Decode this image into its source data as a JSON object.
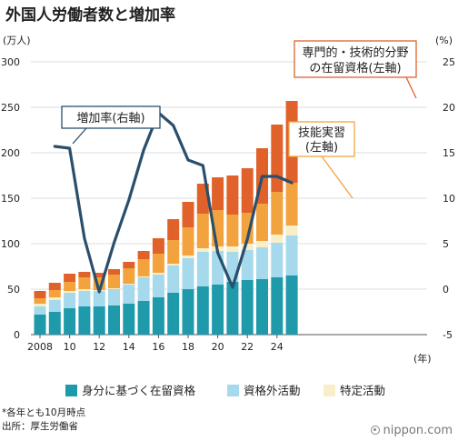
{
  "title": "外国人労働者数と増加率",
  "chart_data": {
    "type": "bar",
    "stacked": true,
    "categories": [
      2008,
      2009,
      2010,
      2011,
      2012,
      2013,
      2014,
      2015,
      2016,
      2017,
      2018,
      2019,
      2020,
      2021,
      2022,
      2023,
      2024,
      2025
    ],
    "series": [
      {
        "name": "身分に基づく在留資格",
        "color": "#1f9aab",
        "values": [
          22,
          25,
          29,
          31,
          31,
          32,
          34,
          37,
          41,
          46,
          50,
          53,
          55,
          58,
          60,
          61,
          63,
          65
        ]
      },
      {
        "name": "資格外活動",
        "color": "#a6d9ec",
        "values": [
          9,
          13,
          17,
          17,
          17,
          18,
          21,
          26,
          25,
          30,
          34,
          38,
          37,
          33,
          33,
          35,
          38,
          44
        ]
      },
      {
        "name": "特定活動",
        "color": "#f8eec8",
        "values": [
          3,
          3,
          2,
          2,
          1,
          1,
          1,
          1,
          2,
          2,
          3,
          4,
          5,
          6,
          7,
          7,
          9,
          11
        ]
      },
      {
        "name": "技能実習",
        "color": "#f3a33d",
        "values": [
          6,
          8,
          10,
          13,
          14,
          15,
          17,
          19,
          21,
          26,
          31,
          38,
          40,
          35,
          34,
          41,
          47,
          47
        ]
      },
      {
        "name": "専門的・技術的分野の在留資格",
        "color": "#e0622a",
        "values": [
          8,
          8,
          9,
          6,
          5,
          6,
          7,
          9,
          17,
          23,
          28,
          33,
          36,
          43,
          49,
          61,
          74,
          90
        ]
      }
    ],
    "growth_rate": {
      "name": "増加率",
      "axis": "right",
      "color": "#2a4f6c",
      "values": [
        null,
        15.7,
        15.5,
        5.6,
        -0.3,
        5.1,
        9.8,
        15.3,
        19.4,
        18.0,
        14.2,
        13.6,
        4.0,
        0.2,
        5.5,
        12.4,
        12.4,
        11.7
      ]
    },
    "y_left": {
      "unit": "(万人)",
      "min": 0,
      "max": 300,
      "ticks": [
        0,
        50,
        100,
        150,
        200,
        250,
        300
      ]
    },
    "y_right": {
      "unit": "(%)",
      "min": -5,
      "max": 25,
      "ticks": [
        -5,
        0,
        5,
        10,
        15,
        20,
        25
      ]
    },
    "x_ticks": [
      {
        "year": 2008,
        "label": "2008"
      },
      {
        "year": 2010,
        "label": "10"
      },
      {
        "year": 2012,
        "label": "12"
      },
      {
        "year": 2014,
        "label": "14"
      },
      {
        "year": 2016,
        "label": "16"
      },
      {
        "year": 2018,
        "label": "18"
      },
      {
        "year": 2020,
        "label": "20"
      },
      {
        "year": 2022,
        "label": "22"
      },
      {
        "year": 2024,
        "label": "24"
      }
    ],
    "x_unit": "(年)",
    "callouts": [
      {
        "lines": [
          "増加率(右軸)"
        ],
        "color": "#2a4f6c"
      },
      {
        "lines": [
          "技能実習",
          "(左軸)"
        ],
        "color": "#f3a33d"
      },
      {
        "lines": [
          "専門的・技術的分野",
          "の在留資格(左軸)"
        ],
        "color": "#e0622a"
      }
    ],
    "legend": [
      "身分に基づく在留資格",
      "資格外活動",
      "特定活動"
    ],
    "legend_position": "bottom",
    "grid": true
  },
  "footnotes": [
    "*各年とも10月時点",
    "出所：厚生労働省"
  ],
  "watermark": "nippon.com"
}
